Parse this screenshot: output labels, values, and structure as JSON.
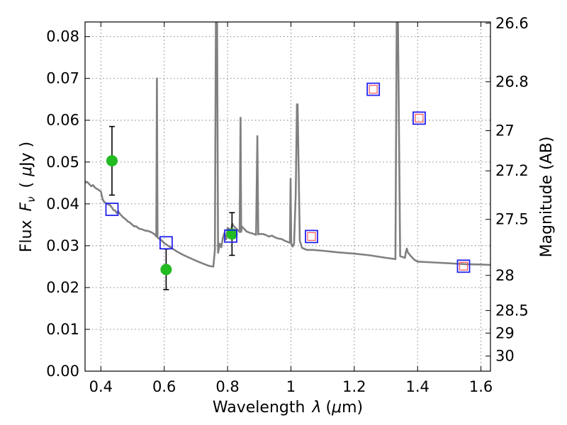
{
  "chart_data": {
    "type": "scatter",
    "title": "",
    "xlabel": "Wavelength",
    "xlabel_symbol": "λ",
    "xlabel_unit_open": "(",
    "xlabel_unit_mu": "μ",
    "xlabel_unit_rest": "m)",
    "ylabel": "Flux",
    "ylabel_symbol": "F",
    "ylabel_symbol_sub": "ν",
    "ylabel_unit_open": "(",
    "ylabel_unit_mu": "μ",
    "ylabel_unit_rest": "Jy )",
    "y2label": "Magnitude (AB)",
    "xlim": [
      0.35,
      1.63
    ],
    "ylim": [
      0.0,
      0.0835
    ],
    "grid": true,
    "x_ticks": [
      {
        "value": 0.4,
        "label": "0.4"
      },
      {
        "value": 0.6,
        "label": "0.6"
      },
      {
        "value": 0.8,
        "label": "0.8"
      },
      {
        "value": 1.0,
        "label": "1"
      },
      {
        "value": 1.2,
        "label": "1.2"
      },
      {
        "value": 1.4,
        "label": "1.4"
      },
      {
        "value": 1.6,
        "label": "1.6"
      }
    ],
    "y_ticks": [
      {
        "value": 0.0,
        "label": "0.00"
      },
      {
        "value": 0.01,
        "label": "0.01"
      },
      {
        "value": 0.02,
        "label": "0.02"
      },
      {
        "value": 0.03,
        "label": "0.03"
      },
      {
        "value": 0.04,
        "label": "0.04"
      },
      {
        "value": 0.05,
        "label": "0.05"
      },
      {
        "value": 0.06,
        "label": "0.06"
      },
      {
        "value": 0.07,
        "label": "0.07"
      },
      {
        "value": 0.08,
        "label": "0.08"
      }
    ],
    "y2_ticks": [
      {
        "flux": 0.0832,
        "label": "26.6"
      },
      {
        "flux": 0.0692,
        "label": "26.8"
      },
      {
        "flux": 0.0575,
        "label": "27"
      },
      {
        "flux": 0.0479,
        "label": "27.2"
      },
      {
        "flux": 0.0363,
        "label": "27.5"
      },
      {
        "flux": 0.0229,
        "label": "28"
      },
      {
        "flux": 0.0145,
        "label": "28.5"
      },
      {
        "flux": 0.0091,
        "label": "29"
      },
      {
        "flux": 0.0036,
        "label": "30"
      }
    ],
    "spectrum": {
      "color": "#808080",
      "x": [
        0.35,
        0.355,
        0.36,
        0.365,
        0.37,
        0.375,
        0.38,
        0.385,
        0.39,
        0.395,
        0.4,
        0.405,
        0.41,
        0.415,
        0.42,
        0.425,
        0.43,
        0.435,
        0.44,
        0.445,
        0.45,
        0.455,
        0.46,
        0.465,
        0.47,
        0.475,
        0.48,
        0.485,
        0.49,
        0.495,
        0.5,
        0.505,
        0.51,
        0.515,
        0.52,
        0.53,
        0.54,
        0.55,
        0.56,
        0.57,
        0.575,
        0.577,
        0.579,
        0.581,
        0.59,
        0.6,
        0.62,
        0.64,
        0.66,
        0.68,
        0.7,
        0.72,
        0.74,
        0.755,
        0.76,
        0.763,
        0.764,
        0.765,
        0.766,
        0.767,
        0.77,
        0.775,
        0.78,
        0.785,
        0.79,
        0.795,
        0.8,
        0.805,
        0.81,
        0.815,
        0.82,
        0.83,
        0.838,
        0.841,
        0.843,
        0.845,
        0.85,
        0.86,
        0.87,
        0.88,
        0.89,
        0.894,
        0.897,
        0.9,
        0.91,
        0.92,
        0.93,
        0.94,
        0.95,
        0.96,
        0.97,
        0.98,
        0.99,
        0.997,
        0.999,
        1.001,
        1.003,
        1.005,
        1.01,
        1.015,
        1.019,
        1.021,
        1.024,
        1.028,
        1.035,
        1.05,
        1.07,
        1.1,
        1.15,
        1.2,
        1.25,
        1.3,
        1.33,
        1.334,
        1.336,
        1.338,
        1.345,
        1.36,
        1.363,
        1.366,
        1.369,
        1.38,
        1.39,
        1.4,
        1.45,
        1.5,
        1.55,
        1.6,
        1.63
      ],
      "y": [
        0.045,
        0.0453,
        0.045,
        0.0446,
        0.0442,
        0.0445,
        0.044,
        0.0437,
        0.0435,
        0.0432,
        0.043,
        0.0412,
        0.0405,
        0.0402,
        0.04,
        0.0398,
        0.0396,
        0.0391,
        0.0385,
        0.0384,
        0.0378,
        0.0382,
        0.0376,
        0.0372,
        0.0368,
        0.0365,
        0.0362,
        0.0358,
        0.0356,
        0.0353,
        0.035,
        0.0346,
        0.0347,
        0.0344,
        0.0341,
        0.0339,
        0.0336,
        0.0335,
        0.0332,
        0.0327,
        0.0322,
        0.07,
        0.032,
        0.0318,
        0.0314,
        0.0306,
        0.0296,
        0.0286,
        0.0278,
        0.0271,
        0.0264,
        0.0258,
        0.0252,
        0.025,
        0.029,
        0.0836,
        0.0836,
        0.0836,
        0.0836,
        0.0836,
        0.0283,
        0.0305,
        0.0296,
        0.0318,
        0.033,
        0.0315,
        0.0343,
        0.034,
        0.0332,
        0.0353,
        0.0346,
        0.0339,
        0.0333,
        0.0606,
        0.0333,
        0.0346,
        0.0342,
        0.0334,
        0.0331,
        0.0329,
        0.0326,
        0.0562,
        0.0327,
        0.0328,
        0.0328,
        0.0326,
        0.0322,
        0.0324,
        0.032,
        0.0317,
        0.0316,
        0.0312,
        0.0309,
        0.0307,
        0.046,
        0.0305,
        0.0302,
        0.0298,
        0.0305,
        0.042,
        0.0638,
        0.0638,
        0.05,
        0.0312,
        0.0295,
        0.029,
        0.029,
        0.0288,
        0.0284,
        0.0281,
        0.0277,
        0.0271,
        0.0268,
        0.0836,
        0.0836,
        0.0836,
        0.0275,
        0.0271,
        0.0285,
        0.0293,
        0.0284,
        0.0274,
        0.0266,
        0.0262,
        0.026,
        0.0258,
        0.0256,
        0.0255,
        0.0254
      ]
    },
    "series": [
      {
        "marker": "filled-circle",
        "color": "#22bb22",
        "points": [
          {
            "x": 0.435,
            "y": 0.0503,
            "yerr_low": 0.0421,
            "yerr_high": 0.0585
          },
          {
            "x": 0.606,
            "y": 0.0243,
            "yerr_low": 0.0195,
            "yerr_high": 0.0292
          },
          {
            "x": 0.814,
            "y": 0.0328,
            "yerr_low": 0.0277,
            "yerr_high": 0.0379
          }
        ]
      },
      {
        "marker": "open-square",
        "color": "#2222ee",
        "points": [
          {
            "x": 0.435,
            "y": 0.0387
          },
          {
            "x": 0.606,
            "y": 0.0307
          },
          {
            "x": 0.81,
            "y": 0.0323
          },
          {
            "x": 1.065,
            "y": 0.0322
          },
          {
            "x": 1.26,
            "y": 0.0674
          },
          {
            "x": 1.405,
            "y": 0.0605
          },
          {
            "x": 1.545,
            "y": 0.0251
          }
        ]
      },
      {
        "marker": "open-square-small",
        "color": "#ff5555",
        "points": [
          {
            "x": 1.065,
            "y": 0.0322
          },
          {
            "x": 1.26,
            "y": 0.0674
          },
          {
            "x": 1.405,
            "y": 0.0605
          },
          {
            "x": 1.545,
            "y": 0.0251
          }
        ]
      }
    ]
  }
}
